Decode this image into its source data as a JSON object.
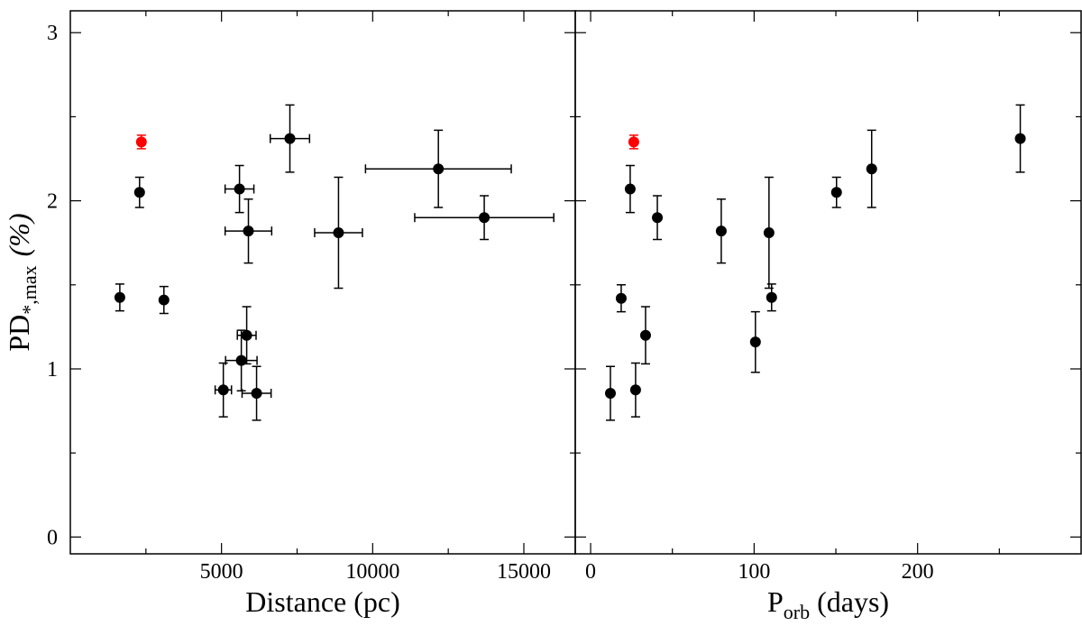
{
  "chart_data": [
    {
      "type": "scatter",
      "xlabel": "Distance (pc)",
      "ylabel": "PD",
      "ylabel_sub": "*,max",
      "ylabel_unit": "(%)",
      "xlim": [
        0,
        16700
      ],
      "ylim": [
        -0.1,
        3.13
      ],
      "xticks": [
        5000,
        10000,
        15000
      ],
      "yticks": [
        0,
        1,
        2,
        3
      ],
      "minor_xticks": [
        2500,
        7500,
        12500
      ],
      "minor_yticks": [
        0.5,
        1.5,
        2.5
      ],
      "show_ytick_labels": true,
      "x": [
        2350,
        1637,
        2290,
        3095,
        5595,
        5890,
        7262,
        8870,
        12173,
        13690,
        5833,
        5655,
        5060,
        6160
      ],
      "values": [
        2.35,
        1.425,
        2.05,
        1.41,
        2.07,
        1.82,
        2.37,
        1.81,
        2.19,
        1.9,
        1.2,
        1.05,
        0.875,
        0.855
      ],
      "xerr": [
        0,
        0,
        0,
        0,
        476,
        770,
        650,
        790,
        2410,
        2300,
        310,
        520,
        270,
        480
      ],
      "yerr": [
        0.04,
        0.08,
        0.09,
        0.08,
        0.14,
        0.19,
        0.2,
        0.33,
        0.23,
        0.13,
        0.17,
        0.18,
        0.16,
        0.16
      ],
      "colors": [
        "#ff0000",
        "#000000",
        "#000000",
        "#000000",
        "#000000",
        "#000000",
        "#000000",
        "#000000",
        "#000000",
        "#000000",
        "#000000",
        "#000000",
        "#000000",
        "#000000"
      ]
    },
    {
      "type": "scatter",
      "xlabel": "P",
      "xlabel_sub": "orb",
      "xlabel_unit": "(days)",
      "xlim": [
        -9.4,
        300
      ],
      "ylim": [
        -0.1,
        3.13
      ],
      "xticks": [
        0,
        100,
        200
      ],
      "yticks": [
        0,
        1,
        2,
        3
      ],
      "minor_xticks": [
        50,
        150,
        250
      ],
      "minor_yticks": [
        0.5,
        1.5,
        2.5
      ],
      "show_ytick_labels": false,
      "x": [
        26.4,
        24.2,
        18.7,
        40.8,
        33.6,
        12.1,
        27.5,
        79.9,
        100.8,
        109.1,
        110.7,
        150.4,
        171.9,
        262.8
      ],
      "values": [
        2.35,
        2.07,
        1.42,
        1.9,
        1.2,
        0.855,
        0.875,
        1.82,
        1.16,
        1.81,
        1.425,
        2.05,
        2.19,
        2.37
      ],
      "yerr": [
        0.04,
        0.14,
        0.08,
        0.13,
        0.17,
        0.16,
        0.16,
        0.19,
        0.18,
        0.33,
        0.08,
        0.09,
        0.23,
        0.2
      ],
      "colors": [
        "#ff0000",
        "#000000",
        "#000000",
        "#000000",
        "#000000",
        "#000000",
        "#000000",
        "#000000",
        "#000000",
        "#000000",
        "#000000",
        "#000000",
        "#000000",
        "#000000"
      ]
    }
  ]
}
